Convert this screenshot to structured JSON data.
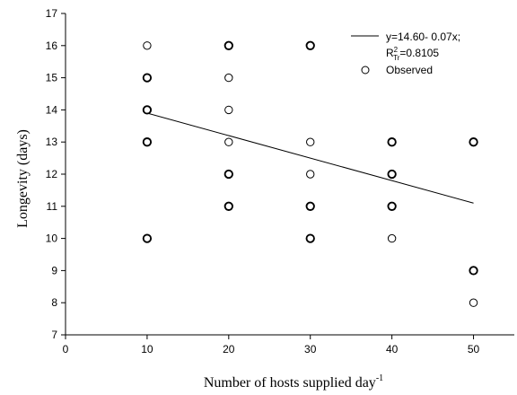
{
  "chart_data": {
    "type": "scatter",
    "xlabel": "Number of hosts supplied day",
    "xlabel_superscript": "-1",
    "ylabel": "Longevity (days)",
    "xlim": [
      0,
      55
    ],
    "ylim": [
      7,
      17
    ],
    "x_ticks": [
      "0",
      "10",
      "20",
      "30",
      "40",
      "50"
    ],
    "y_ticks": [
      "7",
      "8",
      "9",
      "10",
      "11",
      "12",
      "13",
      "14",
      "15",
      "16",
      "17"
    ],
    "grid": false,
    "legend_position": "top-right",
    "series": [
      {
        "name": "Observed",
        "marker": "open-circle",
        "points": [
          {
            "x": 10,
            "y": 16,
            "count": 1
          },
          {
            "x": 10,
            "y": 15,
            "count": 2
          },
          {
            "x": 10,
            "y": 14,
            "count": 2
          },
          {
            "x": 10,
            "y": 13,
            "count": 2
          },
          {
            "x": 10,
            "y": 10,
            "count": 2
          },
          {
            "x": 20,
            "y": 16,
            "count": 2
          },
          {
            "x": 20,
            "y": 15,
            "count": 1
          },
          {
            "x": 20,
            "y": 14,
            "count": 1
          },
          {
            "x": 20,
            "y": 13,
            "count": 1
          },
          {
            "x": 20,
            "y": 12,
            "count": 2
          },
          {
            "x": 20,
            "y": 11,
            "count": 2
          },
          {
            "x": 30,
            "y": 16,
            "count": 2
          },
          {
            "x": 30,
            "y": 13,
            "count": 1
          },
          {
            "x": 30,
            "y": 12,
            "count": 1
          },
          {
            "x": 30,
            "y": 11,
            "count": 2
          },
          {
            "x": 30,
            "y": 10,
            "count": 2
          },
          {
            "x": 40,
            "y": 13,
            "count": 2
          },
          {
            "x": 40,
            "y": 12,
            "count": 2
          },
          {
            "x": 40,
            "y": 11,
            "count": 2
          },
          {
            "x": 40,
            "y": 10,
            "count": 1
          },
          {
            "x": 50,
            "y": 13,
            "count": 2
          },
          {
            "x": 50,
            "y": 9,
            "count": 2
          },
          {
            "x": 50,
            "y": 8,
            "count": 1
          }
        ]
      }
    ],
    "fit_line": {
      "intercept": 14.6,
      "slope": -0.07,
      "x_range": [
        10,
        50
      ]
    },
    "legend": {
      "line_label_1": "y=14.60- 0.07x;",
      "line_label_2_base": "R",
      "line_label_2_sup": "2",
      "line_label_2_sub": "Tr",
      "line_label_2_value": "=0.8105",
      "marker_label": "Observed"
    }
  }
}
